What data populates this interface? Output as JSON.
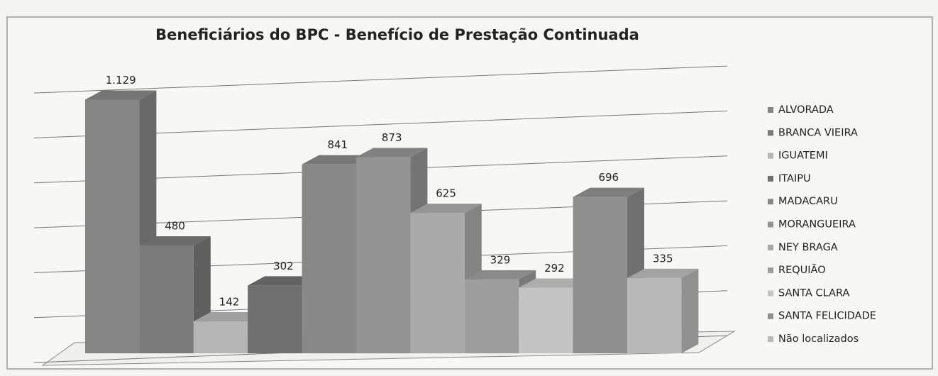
{
  "chart_data": {
    "type": "bar3d",
    "title": "Beneficiários do BPC - Benefício de Prestação Continuada",
    "categories": [
      "ALVORADA",
      "BRANCA VIEIRA",
      "IGUATEMI",
      "ITAIPU",
      "MADACARU",
      "MORANGUEIRA",
      "NEY BRAGA",
      "REQUIÃO",
      "SANTA CLARA",
      "SANTA FELICIDADE",
      "Não localizados"
    ],
    "values": [
      1129,
      480,
      142,
      302,
      841,
      873,
      625,
      329,
      292,
      696,
      335
    ],
    "value_labels": [
      "1.129",
      "480",
      "142",
      "302",
      "841",
      "873",
      "625",
      "329",
      "292",
      "696",
      "335"
    ],
    "colors": [
      "#858585",
      "#7a7a7a",
      "#b5b5b5",
      "#6f6f6f",
      "#888888",
      "#939393",
      "#a9a9a9",
      "#9d9d9d",
      "#c4c4c4",
      "#8f8f8f",
      "#b9b9b9"
    ],
    "ylim": [
      0,
      1200
    ],
    "yticks": [
      0,
      200,
      400,
      600,
      800,
      1000,
      1200
    ],
    "grid": true,
    "legend": "right"
  }
}
